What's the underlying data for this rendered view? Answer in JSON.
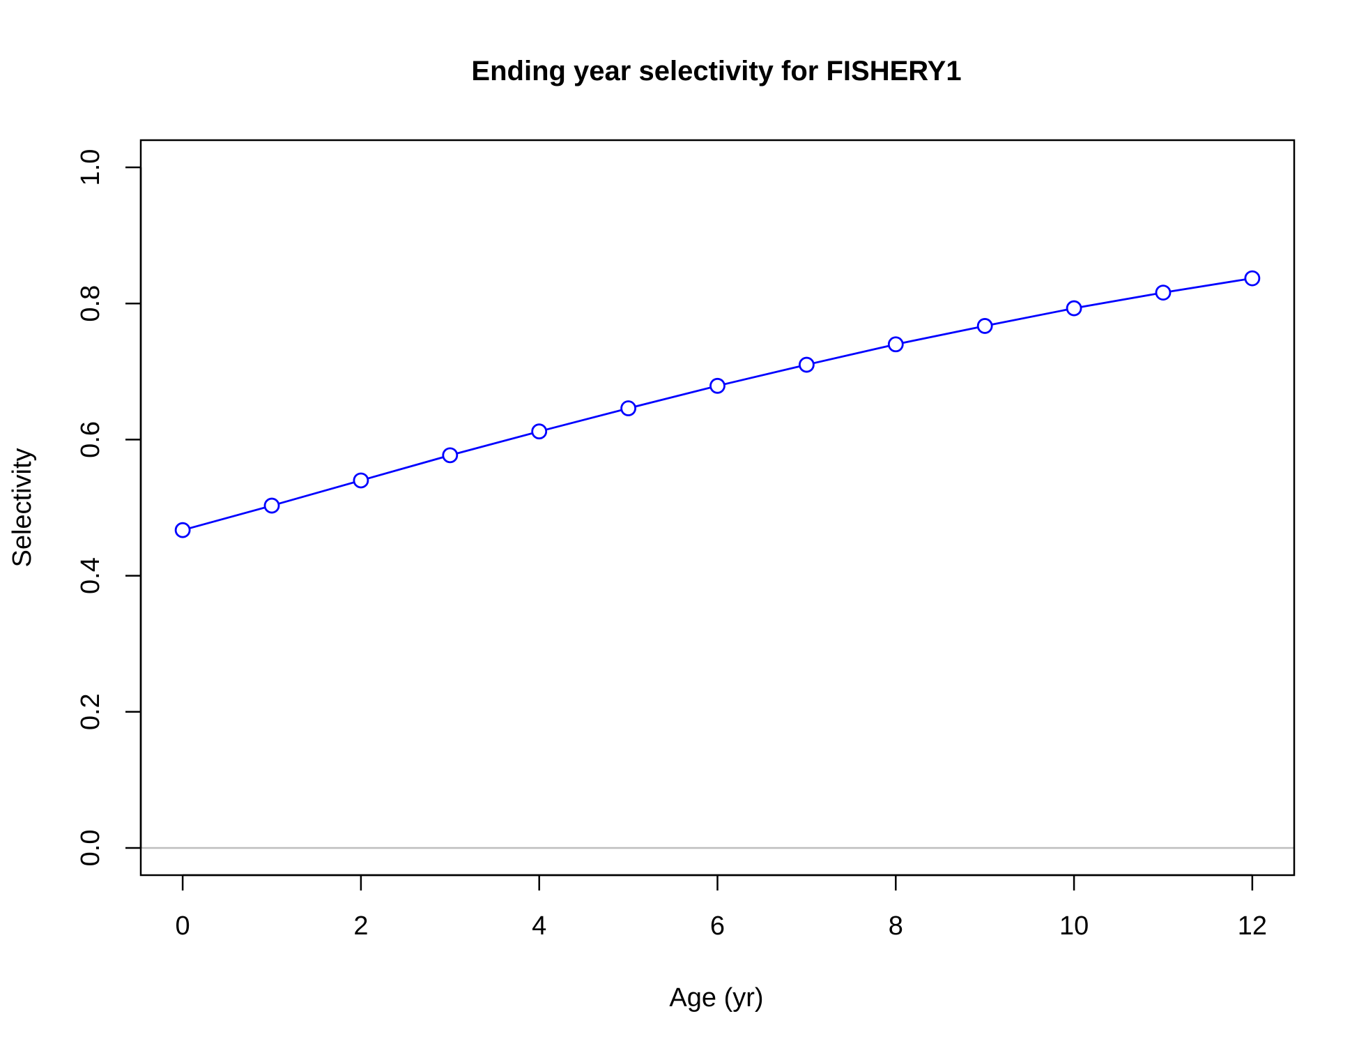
{
  "chart_data": {
    "type": "line",
    "title": "Ending year selectivity for FISHERY1",
    "xlabel": "Age (yr)",
    "ylabel": "Selectivity",
    "xlim": [
      -0.47,
      12.47
    ],
    "ylim": [
      -0.04,
      1.04
    ],
    "x_ticks": [
      0,
      2,
      4,
      6,
      8,
      10,
      12
    ],
    "x_tick_labels": [
      "0",
      "2",
      "4",
      "6",
      "8",
      "10",
      "12"
    ],
    "y_ticks": [
      0.0,
      0.2,
      0.4,
      0.6,
      0.8,
      1.0
    ],
    "y_tick_labels": [
      "0.0",
      "0.2",
      "0.4",
      "0.6",
      "0.8",
      "1.0"
    ],
    "series": [
      {
        "x": [
          0,
          1,
          2,
          3,
          4,
          5,
          6,
          7,
          8,
          9,
          10,
          11,
          12
        ],
        "values": [
          0.467,
          0.503,
          0.54,
          0.577,
          0.612,
          0.646,
          0.679,
          0.71,
          0.74,
          0.767,
          0.793,
          0.816,
          0.837
        ],
        "color": "#0000FF",
        "marker": "open-circle"
      }
    ],
    "reference_line": {
      "y": 0,
      "color": "#BEBEBE"
    },
    "grid": false,
    "legend": "none"
  }
}
